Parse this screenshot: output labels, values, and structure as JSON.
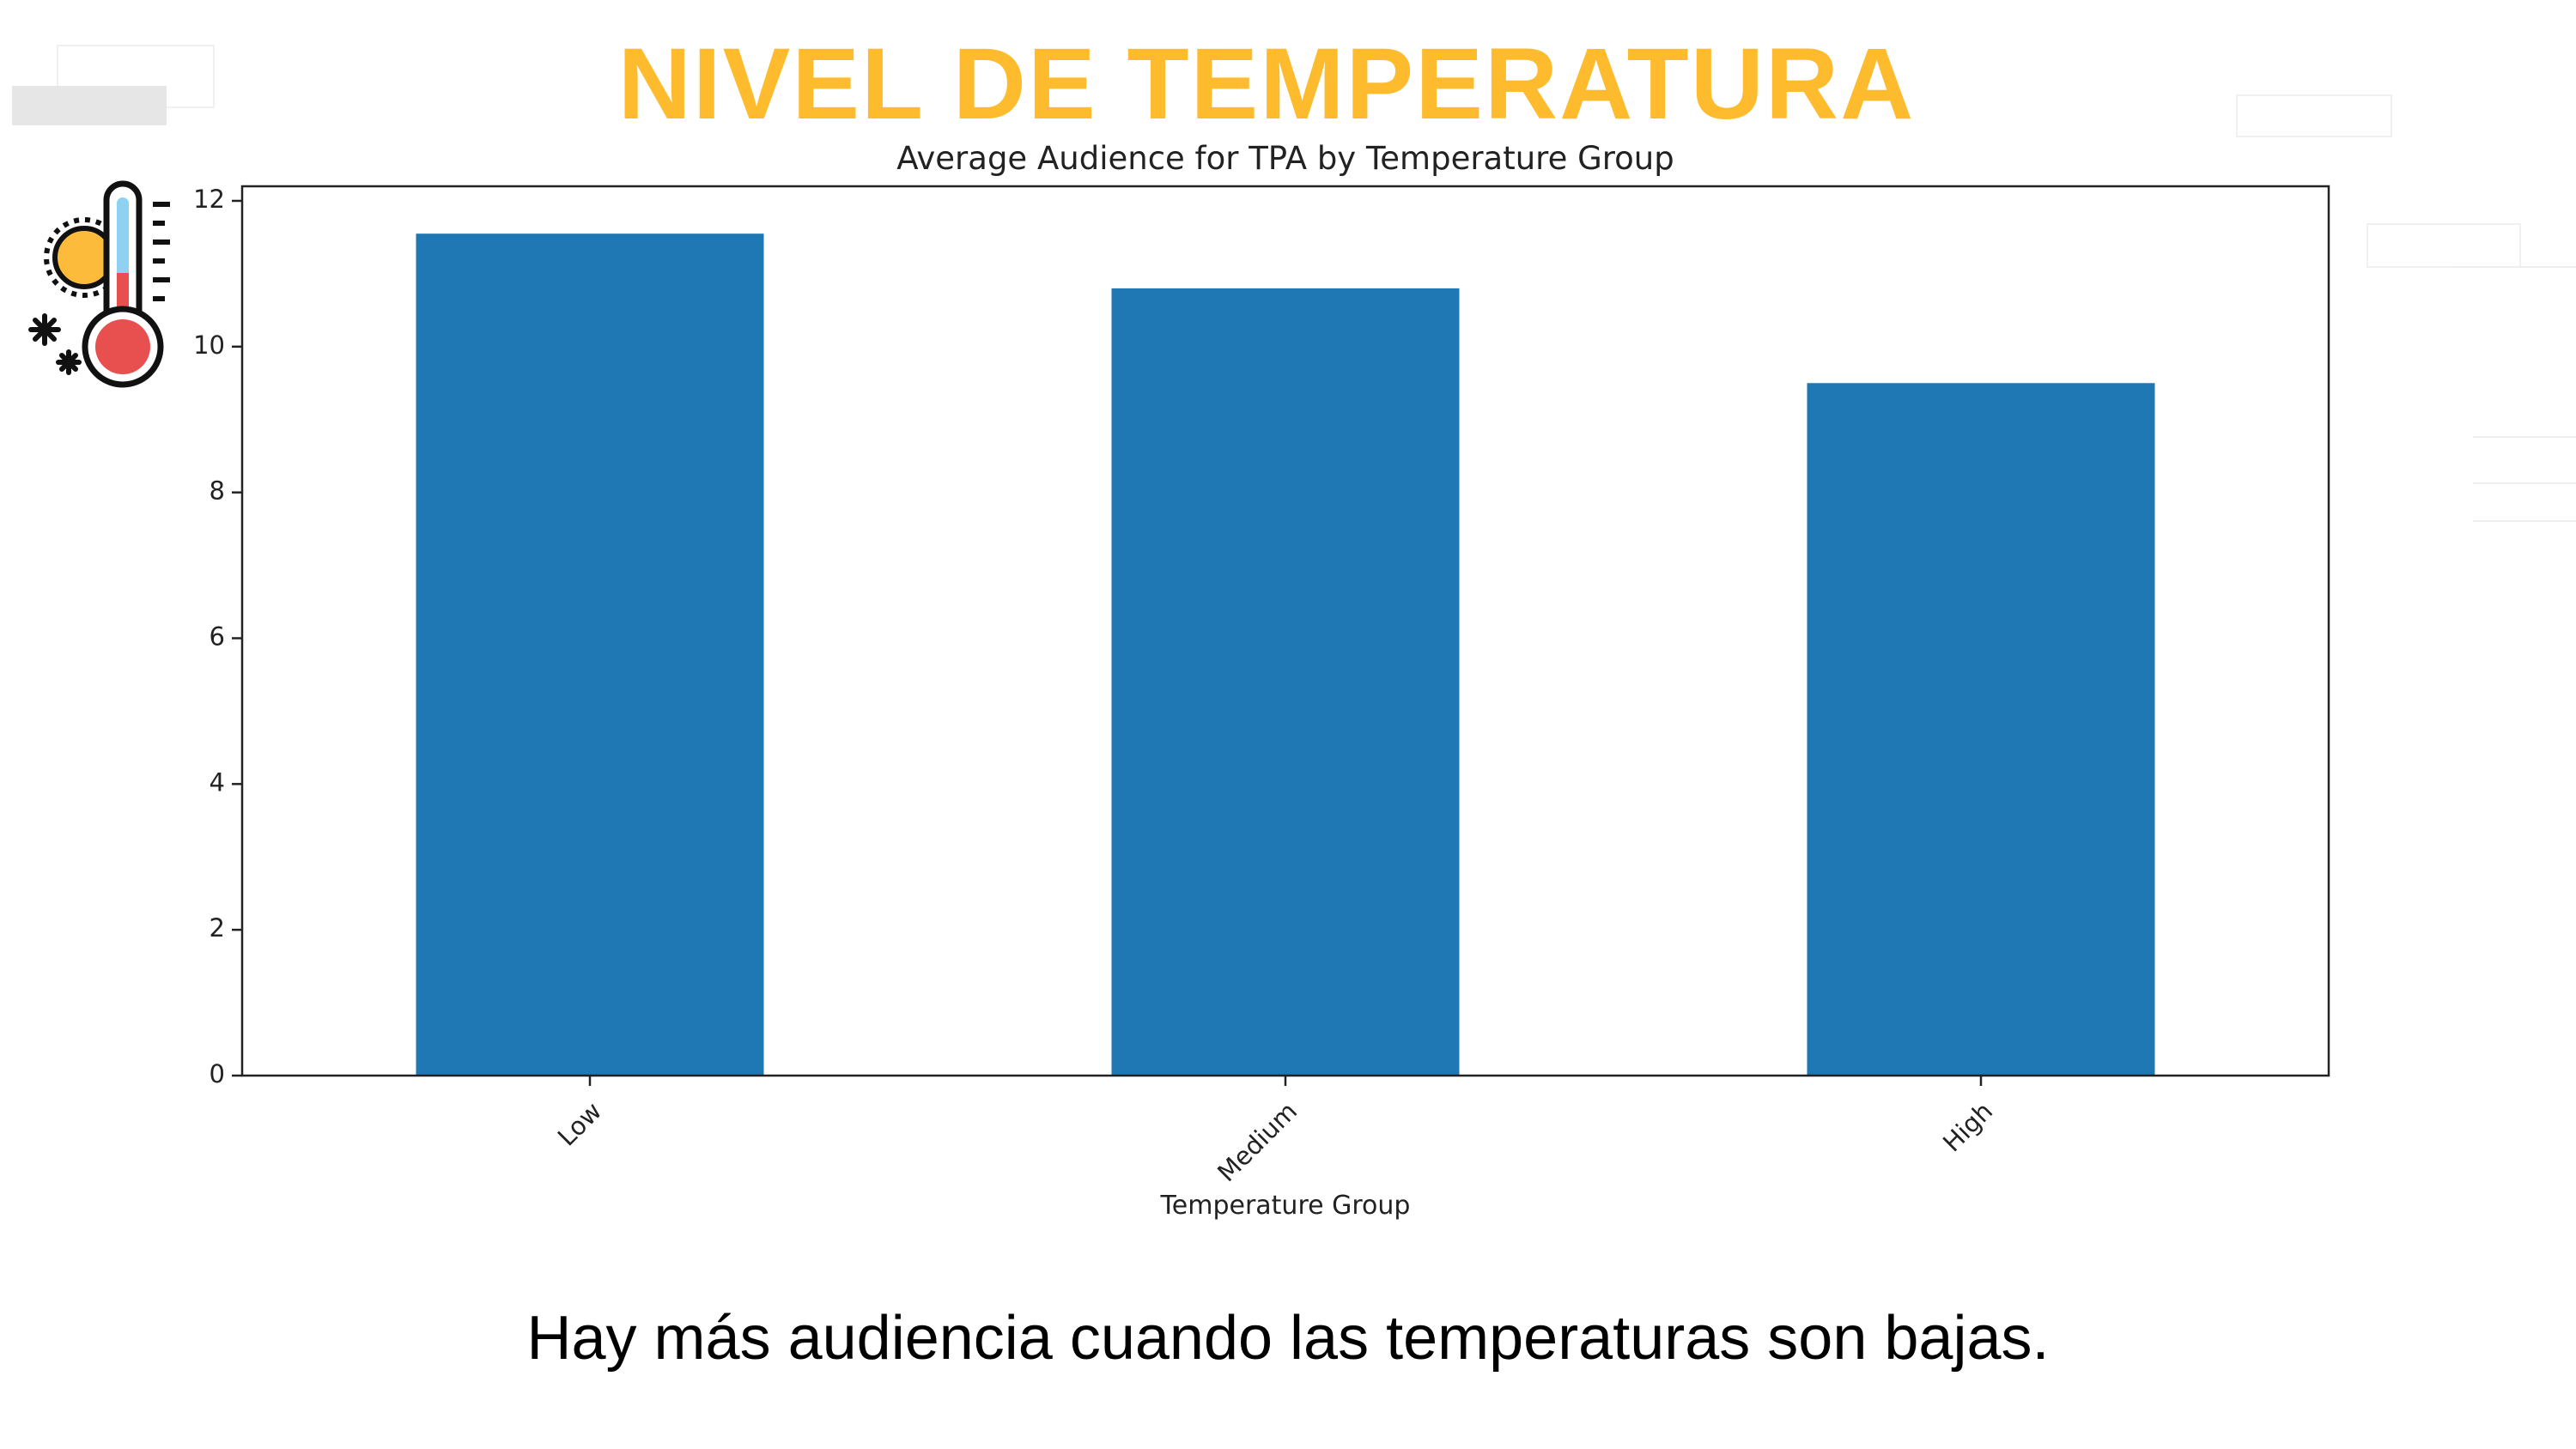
{
  "slide": {
    "title": "NIVEL DE TEMPERATURA",
    "subtitle": "Hay más audiencia cuando las temperaturas son bajas.",
    "title_color": "#FDBB2D",
    "icon": "thermometer-sun-snow-icon"
  },
  "chart_data": {
    "type": "bar",
    "title": "Average Audience for TPA by Temperature Group",
    "xlabel": "Temperature Group",
    "ylabel": "",
    "categories": [
      "Low",
      "Medium",
      "High"
    ],
    "values": [
      11.55,
      10.8,
      9.5
    ],
    "ylim": [
      0,
      12.2
    ],
    "yticks": [
      0,
      2,
      4,
      6,
      8,
      10,
      12
    ],
    "bar_color": "#1f77b4",
    "grid": false,
    "legend": "none"
  }
}
